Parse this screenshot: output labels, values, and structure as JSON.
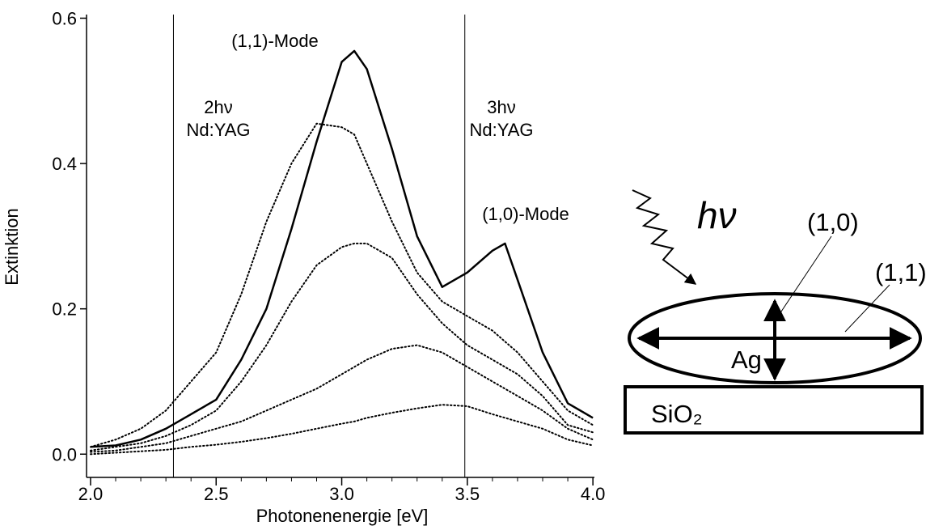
{
  "chart_data": {
    "type": "line",
    "xlabel": "Photonenenergie [eV]",
    "ylabel": "Extinktion",
    "x": [
      2.0,
      2.1,
      2.2,
      2.3,
      2.4,
      2.5,
      2.6,
      2.7,
      2.8,
      2.9,
      3.0,
      3.05,
      3.1,
      3.2,
      3.3,
      3.4,
      3.5,
      3.6,
      3.65,
      3.7,
      3.8,
      3.9,
      4.0
    ],
    "series": [
      {
        "color": "#000000",
        "dash": "solid",
        "values": [
          0.01,
          0.012,
          0.02,
          0.035,
          0.055,
          0.075,
          0.13,
          0.2,
          0.31,
          0.43,
          0.54,
          0.555,
          0.53,
          0.42,
          0.3,
          0.23,
          0.25,
          0.28,
          0.29,
          0.24,
          0.14,
          0.07,
          0.05
        ]
      },
      {
        "color": "#000000",
        "dash": "dotted",
        "values": [
          0.01,
          0.02,
          0.035,
          0.06,
          0.1,
          0.14,
          0.22,
          0.32,
          0.4,
          0.455,
          0.45,
          0.44,
          0.4,
          0.32,
          0.25,
          0.21,
          0.19,
          0.17,
          0.155,
          0.14,
          0.1,
          0.06,
          0.04
        ]
      },
      {
        "color": "#000000",
        "dash": "dotted",
        "values": [
          0.005,
          0.01,
          0.015,
          0.025,
          0.04,
          0.06,
          0.1,
          0.15,
          0.21,
          0.26,
          0.285,
          0.29,
          0.29,
          0.27,
          0.22,
          0.18,
          0.15,
          0.13,
          0.12,
          0.11,
          0.08,
          0.04,
          0.03
        ]
      },
      {
        "color": "#000000",
        "dash": "dotted",
        "values": [
          0.003,
          0.005,
          0.01,
          0.015,
          0.025,
          0.035,
          0.045,
          0.06,
          0.075,
          0.09,
          0.11,
          0.12,
          0.13,
          0.145,
          0.15,
          0.14,
          0.12,
          0.1,
          0.09,
          0.08,
          0.06,
          0.035,
          0.02
        ]
      },
      {
        "color": "#000000",
        "dash": "dotted",
        "values": [
          0.0,
          0.002,
          0.004,
          0.006,
          0.01,
          0.013,
          0.017,
          0.022,
          0.028,
          0.035,
          0.042,
          0.045,
          0.05,
          0.057,
          0.063,
          0.068,
          0.066,
          0.055,
          0.05,
          0.045,
          0.035,
          0.02,
          0.012
        ]
      }
    ],
    "xlim": [
      1.984,
      4.006
    ],
    "ylim": [
      -0.032,
      0.605
    ],
    "xticks": [
      {
        "value": 2.0,
        "label": "2.0"
      },
      2.5,
      {
        "value": 3.0,
        "label": "3.0"
      },
      3.5,
      {
        "value": 4.0,
        "label": "4.0"
      }
    ],
    "xminorticks": [
      2.1,
      2.2,
      2.3,
      2.4,
      2.6,
      2.7,
      2.8,
      2.9,
      3.1,
      3.2,
      3.3,
      3.4,
      3.6,
      3.7,
      3.8,
      3.9
    ],
    "yticks": [
      {
        "value": 0.0,
        "label": "0.0"
      },
      0.2,
      0.4,
      0.6
    ],
    "vlines": [
      2.33,
      3.49
    ],
    "annotations": [
      "(1,1)-Mode",
      "2hν",
      "Nd:YAG",
      "3hν",
      "Nd:YAG",
      "(1,0)-Mode"
    ]
  },
  "diagram": {
    "photon": "hν",
    "mode_10": "(1,0)",
    "mode_11": "(1,1)",
    "particle": "Ag",
    "substrate": "SiO₂"
  }
}
